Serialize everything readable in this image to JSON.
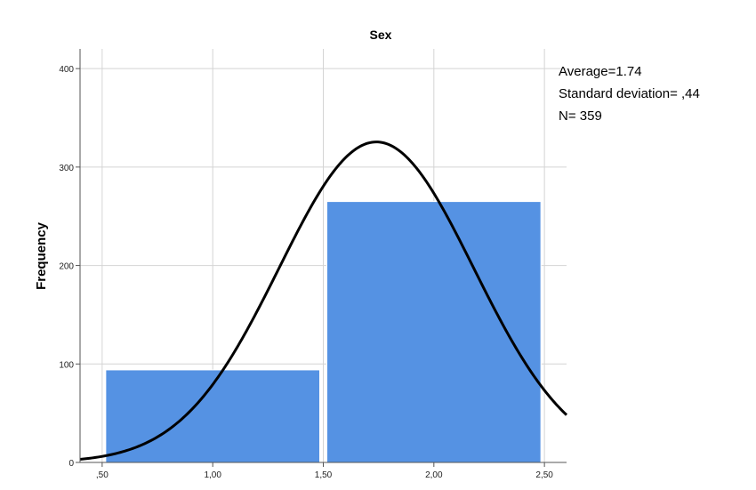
{
  "chart_data": {
    "type": "bar",
    "title": "Sex",
    "xlabel": "",
    "ylabel": "Frequency",
    "bins": [
      {
        "x0": 0.5,
        "x1": 1.5,
        "value": 94
      },
      {
        "x0": 1.5,
        "x1": 2.5,
        "value": 265
      }
    ],
    "xlim": [
      0.4,
      2.6
    ],
    "ylim": [
      0,
      420
    ],
    "x_ticks": [
      {
        "value": 0.5,
        "label": ",50"
      },
      {
        "value": 1.0,
        "label": "1,00"
      },
      {
        "value": 1.5,
        "label": "1,50"
      },
      {
        "value": 2.0,
        "label": "2,00"
      },
      {
        "value": 2.5,
        "label": "2,50"
      }
    ],
    "y_ticks": [
      {
        "value": 0,
        "label": "0"
      },
      {
        "value": 100,
        "label": "100"
      },
      {
        "value": 200,
        "label": "200"
      },
      {
        "value": 300,
        "label": "300"
      },
      {
        "value": 400,
        "label": "400"
      }
    ],
    "grid": true,
    "normal_curve": {
      "mean": 1.74,
      "sd": 0.44,
      "n": 359,
      "bin_width": 1.0
    },
    "stats": {
      "mean_line": "Average=1.74",
      "sd_line": "Standard deviation= ,44",
      "n_line": "N= 359"
    },
    "colors": {
      "bar": "#5592e3",
      "curve": "#000000",
      "grid": "#d4d4d4",
      "axis": "#555555"
    }
  }
}
